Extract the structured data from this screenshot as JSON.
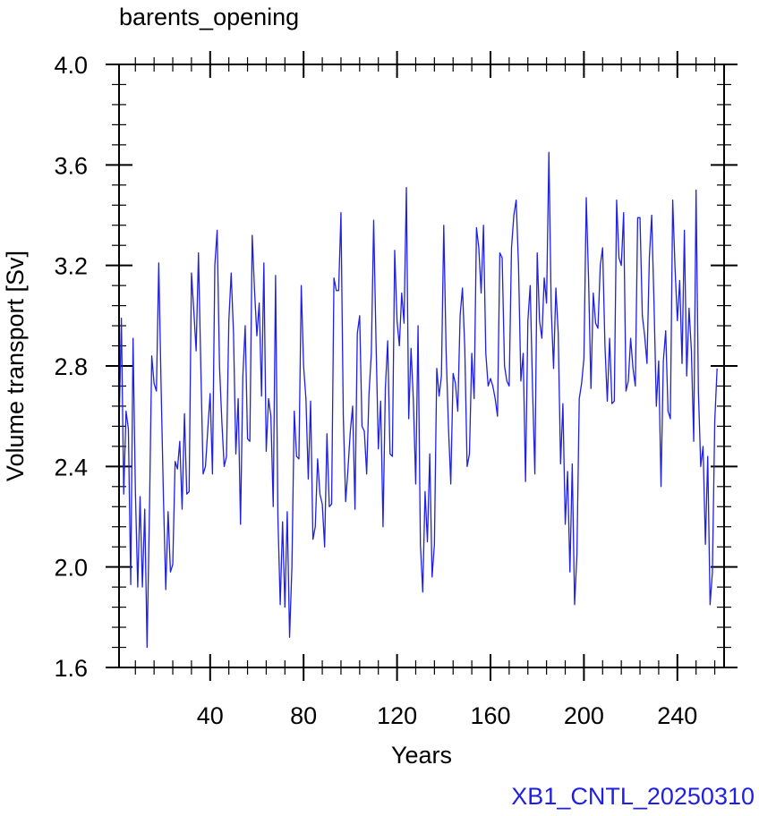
{
  "chart_data": {
    "type": "line",
    "title": "barents_opening",
    "xlabel": "Years",
    "ylabel": "Volume transport [Sv]",
    "annotation": "XB1_CNTL_20250310",
    "xlim": [
      1,
      260
    ],
    "ylim": [
      1.6,
      4.0
    ],
    "x_major_ticks": [
      40,
      80,
      120,
      160,
      200,
      240
    ],
    "x_tick_labels": [
      "40",
      "80",
      "120",
      "160",
      "200",
      "240"
    ],
    "x_minor_step": 8,
    "y_major_ticks": [
      1.6,
      2.0,
      2.4,
      2.8,
      3.2,
      3.6,
      4.0
    ],
    "y_tick_labels": [
      "1.6",
      "2.0",
      "2.4",
      "2.8",
      "3.2",
      "3.6",
      "4.0"
    ],
    "y_minor_step": 0.08,
    "grid": false,
    "colors": {
      "line": "#1f1fe6",
      "annotation": "#1f1fe6",
      "axes": "#000000"
    },
    "series": [
      {
        "x_start": 1,
        "x_step": 1,
        "values": [
          2.55,
          2.99,
          2.29,
          2.62,
          2.55,
          1.93,
          2.91,
          2.3,
          1.92,
          2.28,
          1.92,
          2.23,
          1.68,
          2.21,
          2.84,
          2.73,
          2.7,
          3.21,
          2.72,
          2.28,
          1.91,
          2.22,
          1.98,
          2.01,
          2.42,
          2.39,
          2.5,
          2.23,
          2.61,
          2.29,
          2.3,
          3.17,
          3.02,
          2.86,
          3.25,
          2.8,
          2.37,
          2.4,
          2.55,
          2.69,
          2.37,
          3.2,
          3.34,
          2.8,
          2.58,
          2.4,
          2.44,
          2.98,
          3.17,
          2.93,
          2.45,
          2.67,
          2.17,
          2.76,
          2.96,
          2.51,
          2.5,
          3.32,
          3.1,
          2.92,
          3.05,
          2.68,
          3.21,
          2.46,
          2.67,
          2.6,
          2.24,
          3.16,
          2.2,
          1.85,
          2.18,
          1.84,
          2.22,
          1.72,
          2.0,
          2.62,
          2.44,
          2.43,
          3.12,
          2.8,
          2.67,
          2.35,
          2.66,
          2.11,
          2.16,
          2.43,
          2.29,
          2.25,
          2.08,
          2.53,
          2.24,
          2.25,
          3.15,
          3.1,
          3.1,
          3.41,
          2.6,
          2.26,
          2.39,
          2.54,
          2.64,
          2.23,
          2.93,
          3.0,
          2.56,
          2.54,
          2.37,
          2.69,
          2.85,
          3.38,
          2.9,
          2.47,
          2.66,
          2.16,
          2.71,
          2.9,
          2.45,
          2.44,
          3.26,
          2.98,
          2.88,
          3.09,
          2.97,
          3.51,
          2.59,
          2.87,
          2.66,
          2.33,
          2.96,
          2.09,
          1.9,
          2.3,
          2.1,
          2.45,
          1.96,
          2.09,
          2.79,
          2.68,
          2.76,
          3.36,
          2.86,
          2.56,
          2.33,
          2.77,
          2.73,
          2.62,
          3.0,
          3.11,
          2.87,
          2.4,
          2.45,
          2.85,
          2.67,
          3.35,
          3.27,
          3.09,
          3.36,
          2.85,
          2.72,
          2.75,
          2.72,
          2.67,
          2.6,
          3.25,
          3.23,
          2.8,
          2.74,
          2.72,
          3.27,
          3.4,
          3.46,
          3.2,
          2.74,
          2.85,
          2.34,
          2.98,
          3.12,
          2.71,
          2.37,
          3.25,
          2.98,
          2.91,
          3.15,
          3.05,
          3.65,
          3.03,
          2.79,
          3.11,
          2.93,
          2.41,
          2.65,
          2.17,
          2.38,
          1.98,
          2.41,
          1.85,
          2.05,
          2.67,
          2.73,
          2.83,
          3.47,
          3.14,
          2.71,
          3.09,
          2.97,
          2.95,
          3.2,
          3.27,
          2.88,
          2.66,
          2.91,
          2.65,
          2.66,
          3.46,
          3.23,
          3.2,
          3.41,
          2.7,
          2.74,
          2.91,
          2.79,
          2.72,
          3.39,
          3.39,
          3.0,
          2.92,
          2.81,
          3.23,
          3.4,
          3.05,
          2.64,
          2.82,
          2.32,
          2.82,
          2.94,
          2.62,
          2.59,
          3.46,
          3.19,
          2.98,
          3.14,
          2.81,
          3.34,
          2.76,
          3.03,
          2.86,
          2.5,
          3.5,
          2.7,
          2.4,
          2.48,
          2.09,
          2.44,
          1.85,
          1.98,
          2.58,
          2.79
        ]
      }
    ]
  }
}
